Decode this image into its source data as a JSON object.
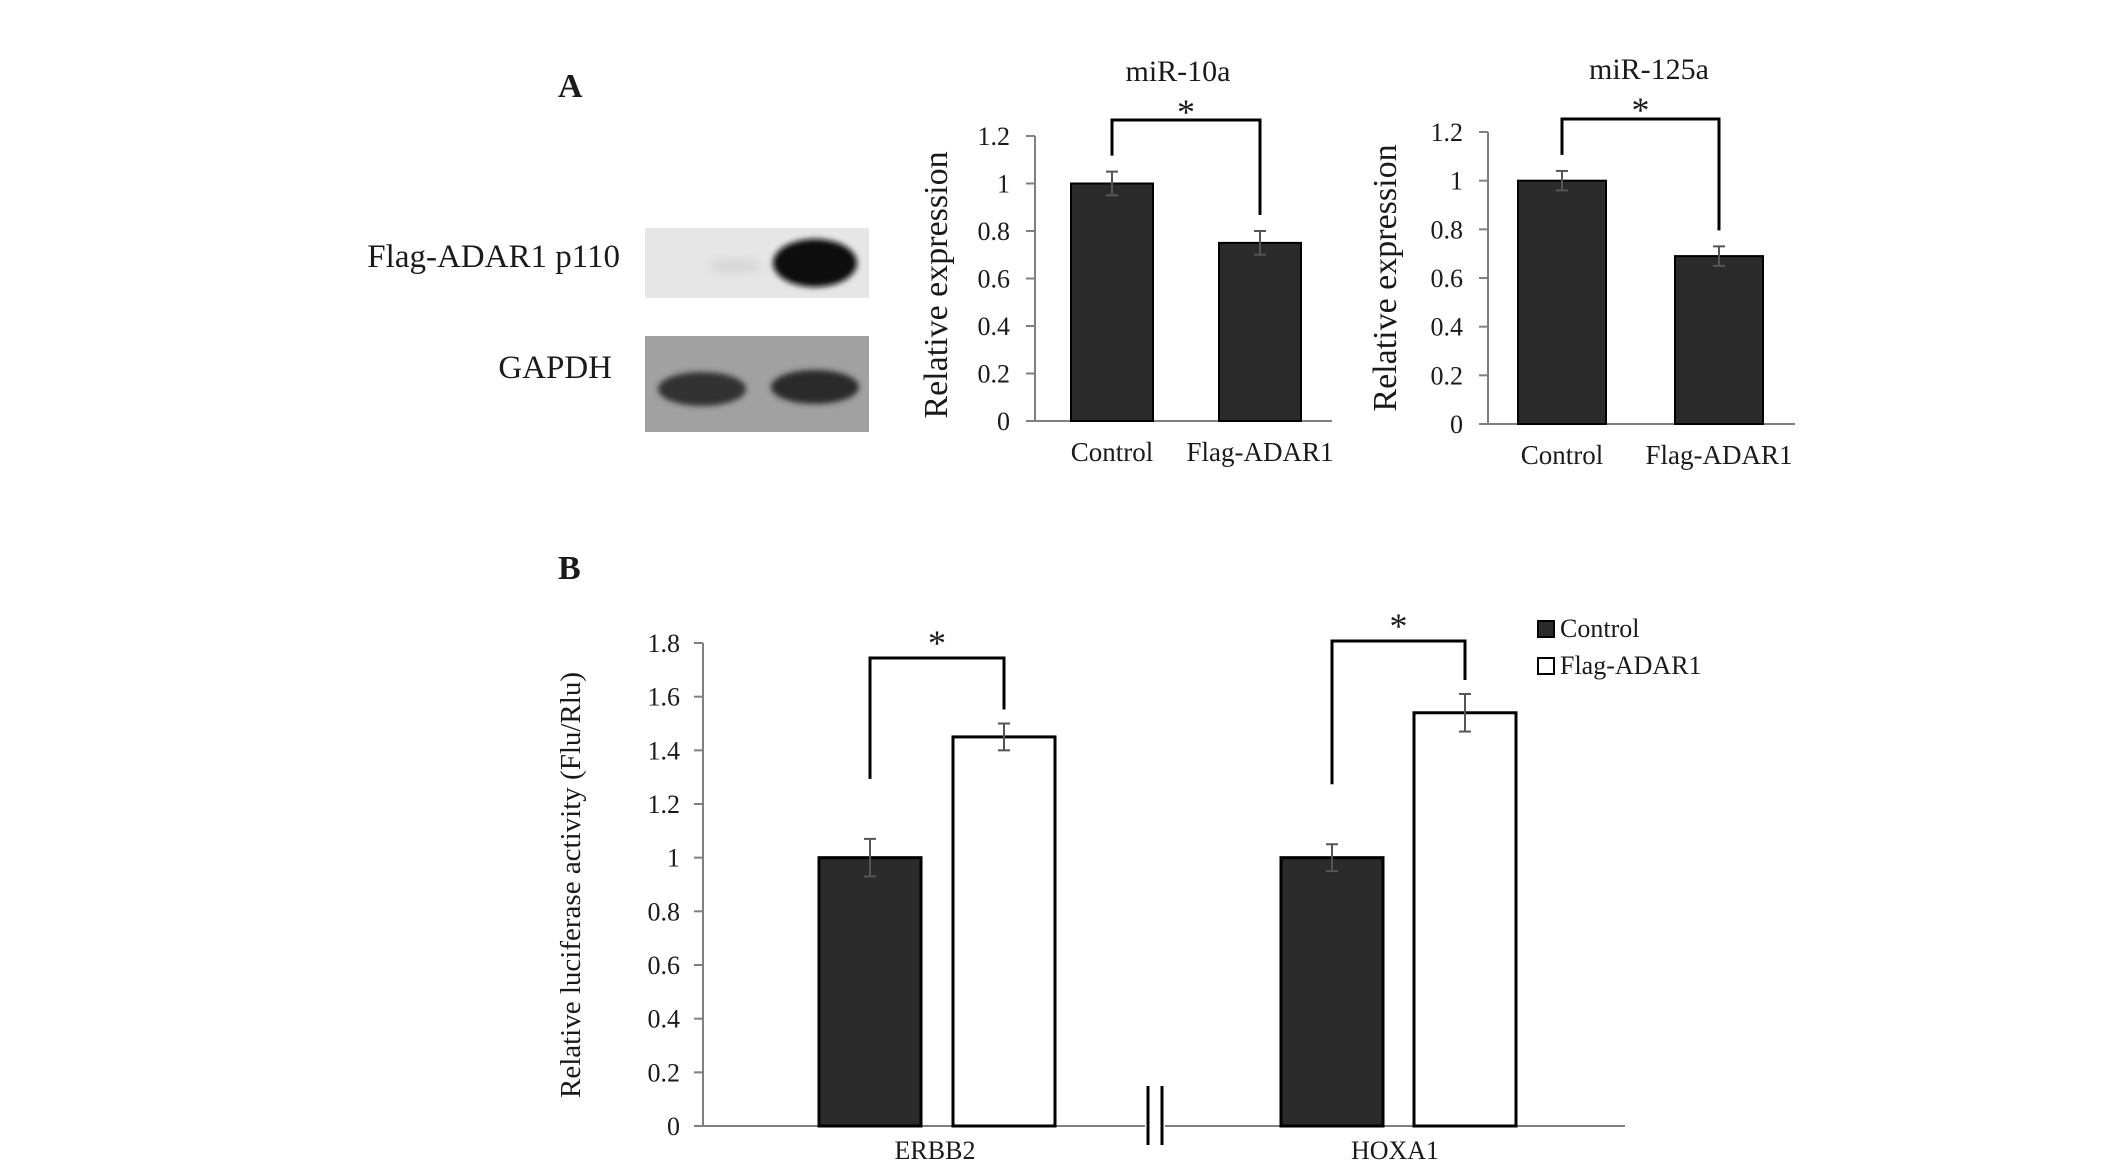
{
  "panels": {
    "a": {
      "label": "A"
    },
    "b": {
      "label": "B"
    }
  },
  "blot": {
    "bands": [
      {
        "label": "Flag-ADAR1 p110"
      },
      {
        "label": "GAPDH"
      }
    ]
  },
  "colors": {
    "control_fill": "#2b2b2b",
    "flag_fill": "#ffffff",
    "axis": "#7f7f7f",
    "bracket": "#000000"
  },
  "significance_marker": "*",
  "chart_data": [
    {
      "type": "bar",
      "title": "miR-10a",
      "categories": [
        "Control",
        "Flag-ADAR1"
      ],
      "values": [
        1.0,
        0.75
      ],
      "errors": [
        0.05,
        0.05
      ],
      "ylabel": "Relative expression",
      "xlabel": "",
      "ylim": [
        0,
        1.2
      ],
      "yticks": [
        "0",
        "0.2",
        "0.4",
        "0.6",
        "0.8",
        "1",
        "1.2"
      ],
      "grid": false,
      "significance": [
        {
          "between": [
            0,
            1
          ],
          "label": "*"
        }
      ]
    },
    {
      "type": "bar",
      "title": "miR-125a",
      "categories": [
        "Control",
        "Flag-ADAR1"
      ],
      "values": [
        1.0,
        0.69
      ],
      "errors": [
        0.04,
        0.04
      ],
      "ylabel": "Relative expression",
      "xlabel": "",
      "ylim": [
        0,
        1.2
      ],
      "yticks": [
        "0",
        "0.2",
        "0.4",
        "0.6",
        "0.8",
        "1",
        "1.2"
      ],
      "grid": false,
      "significance": [
        {
          "between": [
            0,
            1
          ],
          "label": "*"
        }
      ]
    },
    {
      "type": "bar",
      "title": "",
      "categories": [
        "ERBB2",
        "HOXA1"
      ],
      "series": [
        {
          "name": "Control",
          "values": [
            1.0,
            1.0
          ],
          "errors": [
            0.07,
            0.05
          ]
        },
        {
          "name": "Flag-ADAR1",
          "values": [
            1.45,
            1.54
          ],
          "errors": [
            0.05,
            0.07
          ]
        }
      ],
      "ylabel": "Relative luciferase activity (Flu/Rlu)",
      "xlabel": "",
      "ylim": [
        0,
        1.8
      ],
      "yticks": [
        "0",
        "0.2",
        "0.4",
        "0.6",
        "0.8",
        "1",
        "1.2",
        "1.4",
        "1.6",
        "1.8"
      ],
      "grid": false,
      "legend": "top-right",
      "axis_break": true,
      "significance": [
        {
          "category": 0,
          "label": "*"
        },
        {
          "category": 1,
          "label": "*"
        }
      ]
    }
  ]
}
